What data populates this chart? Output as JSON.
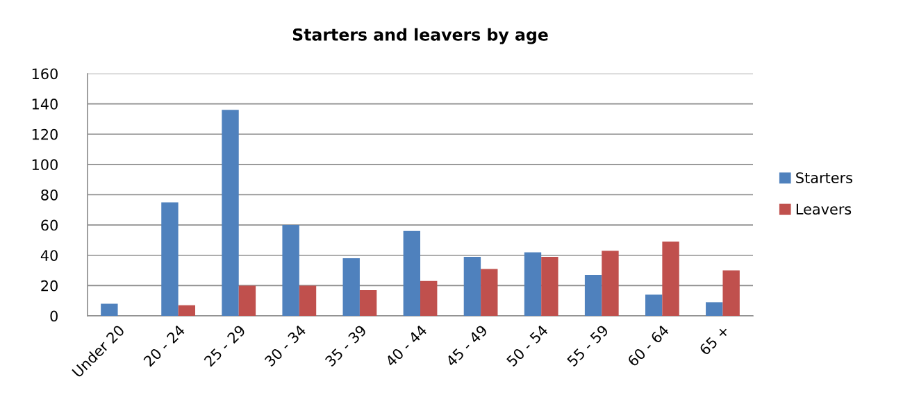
{
  "chart_data": {
    "type": "bar",
    "title": "Starters and leavers by age",
    "categories": [
      "Under 20",
      "20 - 24",
      "25 - 29",
      "30 - 34",
      "35 - 39",
      "40 - 44",
      "45 - 49",
      "50 - 54",
      "55 - 59",
      "60 - 64",
      "65 +"
    ],
    "series": [
      {
        "name": "Starters",
        "color": "#4f81bd",
        "values": [
          8,
          75,
          136,
          60,
          38,
          56,
          39,
          42,
          27,
          14,
          9
        ]
      },
      {
        "name": "Leavers",
        "color": "#c0504d",
        "values": [
          0,
          7,
          20,
          20,
          17,
          23,
          31,
          39,
          43,
          49,
          30
        ]
      }
    ],
    "ylim": [
      0,
      160
    ],
    "yticks": [
      0,
      20,
      40,
      60,
      80,
      100,
      120,
      140,
      160
    ],
    "grid": "y",
    "legend": "right"
  }
}
